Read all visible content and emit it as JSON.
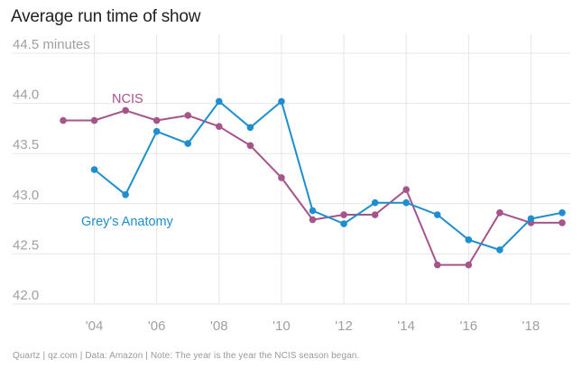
{
  "title": "Average run time of show",
  "footer": "Quartz | qz.com | Data: Amazon | Note: The year is the year the NCIS season began.",
  "colors": {
    "ncis": "#a5558a",
    "greys": "#1f8ece",
    "grid": "#e6e6e6",
    "tick": "#a0a0a0",
    "title": "#222222",
    "footer": "#9a9a9a"
  },
  "chart_data": {
    "type": "line",
    "title": "Average run time of show",
    "xlabel": "",
    "ylabel": "minutes",
    "xlim": [
      2003,
      2019
    ],
    "ylim": [
      42.0,
      44.5
    ],
    "x_ticks": [
      2004,
      2006,
      2008,
      2010,
      2012,
      2014,
      2016,
      2018
    ],
    "x_tick_labels": [
      "'04",
      "'06",
      "'08",
      "'10",
      "'12",
      "'14",
      "'16",
      "'18"
    ],
    "y_ticks": [
      42.0,
      42.5,
      43.0,
      43.5,
      44.0,
      44.5
    ],
    "y_tick_labels": [
      "42.0",
      "42.5",
      "43.0",
      "43.5",
      "44.0",
      "44.5 minutes"
    ],
    "series": [
      {
        "name": "NCIS",
        "color": "#a5558a",
        "x": [
          2003,
          2004,
          2005,
          2006,
          2007,
          2008,
          2009,
          2010,
          2011,
          2012,
          2013,
          2014,
          2015,
          2016,
          2017,
          2018,
          2019
        ],
        "values": [
          43.83,
          43.83,
          43.93,
          43.83,
          43.88,
          43.77,
          43.58,
          43.26,
          42.84,
          42.89,
          42.89,
          43.14,
          42.39,
          42.39,
          42.91,
          42.81,
          42.81
        ]
      },
      {
        "name": "Grey's Anatomy",
        "color": "#1f8ece",
        "x": [
          2004,
          2005,
          2006,
          2007,
          2008,
          2009,
          2010,
          2011,
          2012,
          2013,
          2014,
          2015,
          2016,
          2017,
          2018,
          2019
        ],
        "values": [
          43.34,
          43.09,
          43.72,
          43.6,
          44.02,
          43.76,
          44.02,
          42.93,
          42.8,
          43.01,
          43.01,
          42.89,
          42.64,
          42.54,
          42.85,
          42.91
        ]
      }
    ]
  }
}
